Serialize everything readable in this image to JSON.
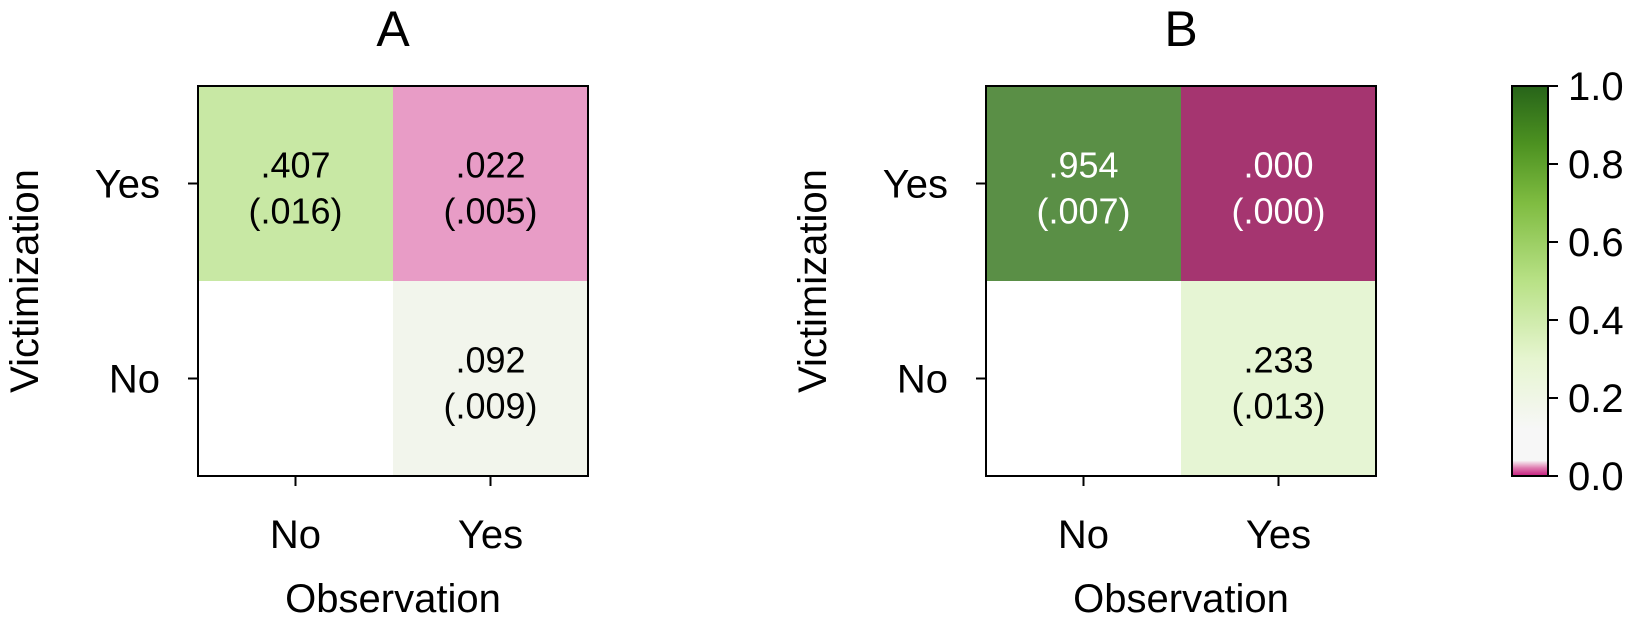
{
  "chart_data": [
    {
      "type": "heatmap",
      "title": "A",
      "xlabel": "Observation",
      "ylabel": "Victimization",
      "x_categories": [
        "No",
        "Yes"
      ],
      "y_categories": [
        "Yes",
        "No"
      ],
      "cells": [
        {
          "x": "No",
          "y": "Yes",
          "value": 0.407,
          "label": ".407",
          "se_label": "(.016)"
        },
        {
          "x": "Yes",
          "y": "Yes",
          "value": 0.022,
          "label": ".022",
          "se_label": "(.005)"
        },
        {
          "x": "No",
          "y": "No",
          "value": null,
          "label": "",
          "se_label": ""
        },
        {
          "x": "Yes",
          "y": "No",
          "value": 0.092,
          "label": ".092",
          "se_label": "(.009)"
        }
      ]
    },
    {
      "type": "heatmap",
      "title": "B",
      "xlabel": "Observation",
      "ylabel": "Victimization",
      "x_categories": [
        "No",
        "Yes"
      ],
      "y_categories": [
        "Yes",
        "No"
      ],
      "cells": [
        {
          "x": "No",
          "y": "Yes",
          "value": 0.954,
          "label": ".954",
          "se_label": "(.007)"
        },
        {
          "x": "Yes",
          "y": "Yes",
          "value": 0.0,
          "label": ".000",
          "se_label": "(.000)"
        },
        {
          "x": "No",
          "y": "No",
          "value": null,
          "label": "",
          "se_label": ""
        },
        {
          "x": "Yes",
          "y": "No",
          "value": 0.233,
          "label": ".233",
          "se_label": "(.013)"
        }
      ]
    }
  ],
  "colorbar": {
    "range": [
      0.0,
      1.0
    ],
    "ticks": [
      "0.0",
      "0.2",
      "0.4",
      "0.6",
      "0.8",
      "1.0"
    ],
    "colormap": "PiYG"
  },
  "colors": {
    "panelA_cells": [
      "#c8e8a4",
      "#e89cc6",
      "#ffffff",
      "#f2f5ec"
    ],
    "panelB_cells": [
      "#5a8f46",
      "#a53570",
      "#ffffff",
      "#e6f5d4"
    ],
    "text_light": "#ffffff",
    "text_dark": "#000000",
    "axis": "#000000"
  }
}
